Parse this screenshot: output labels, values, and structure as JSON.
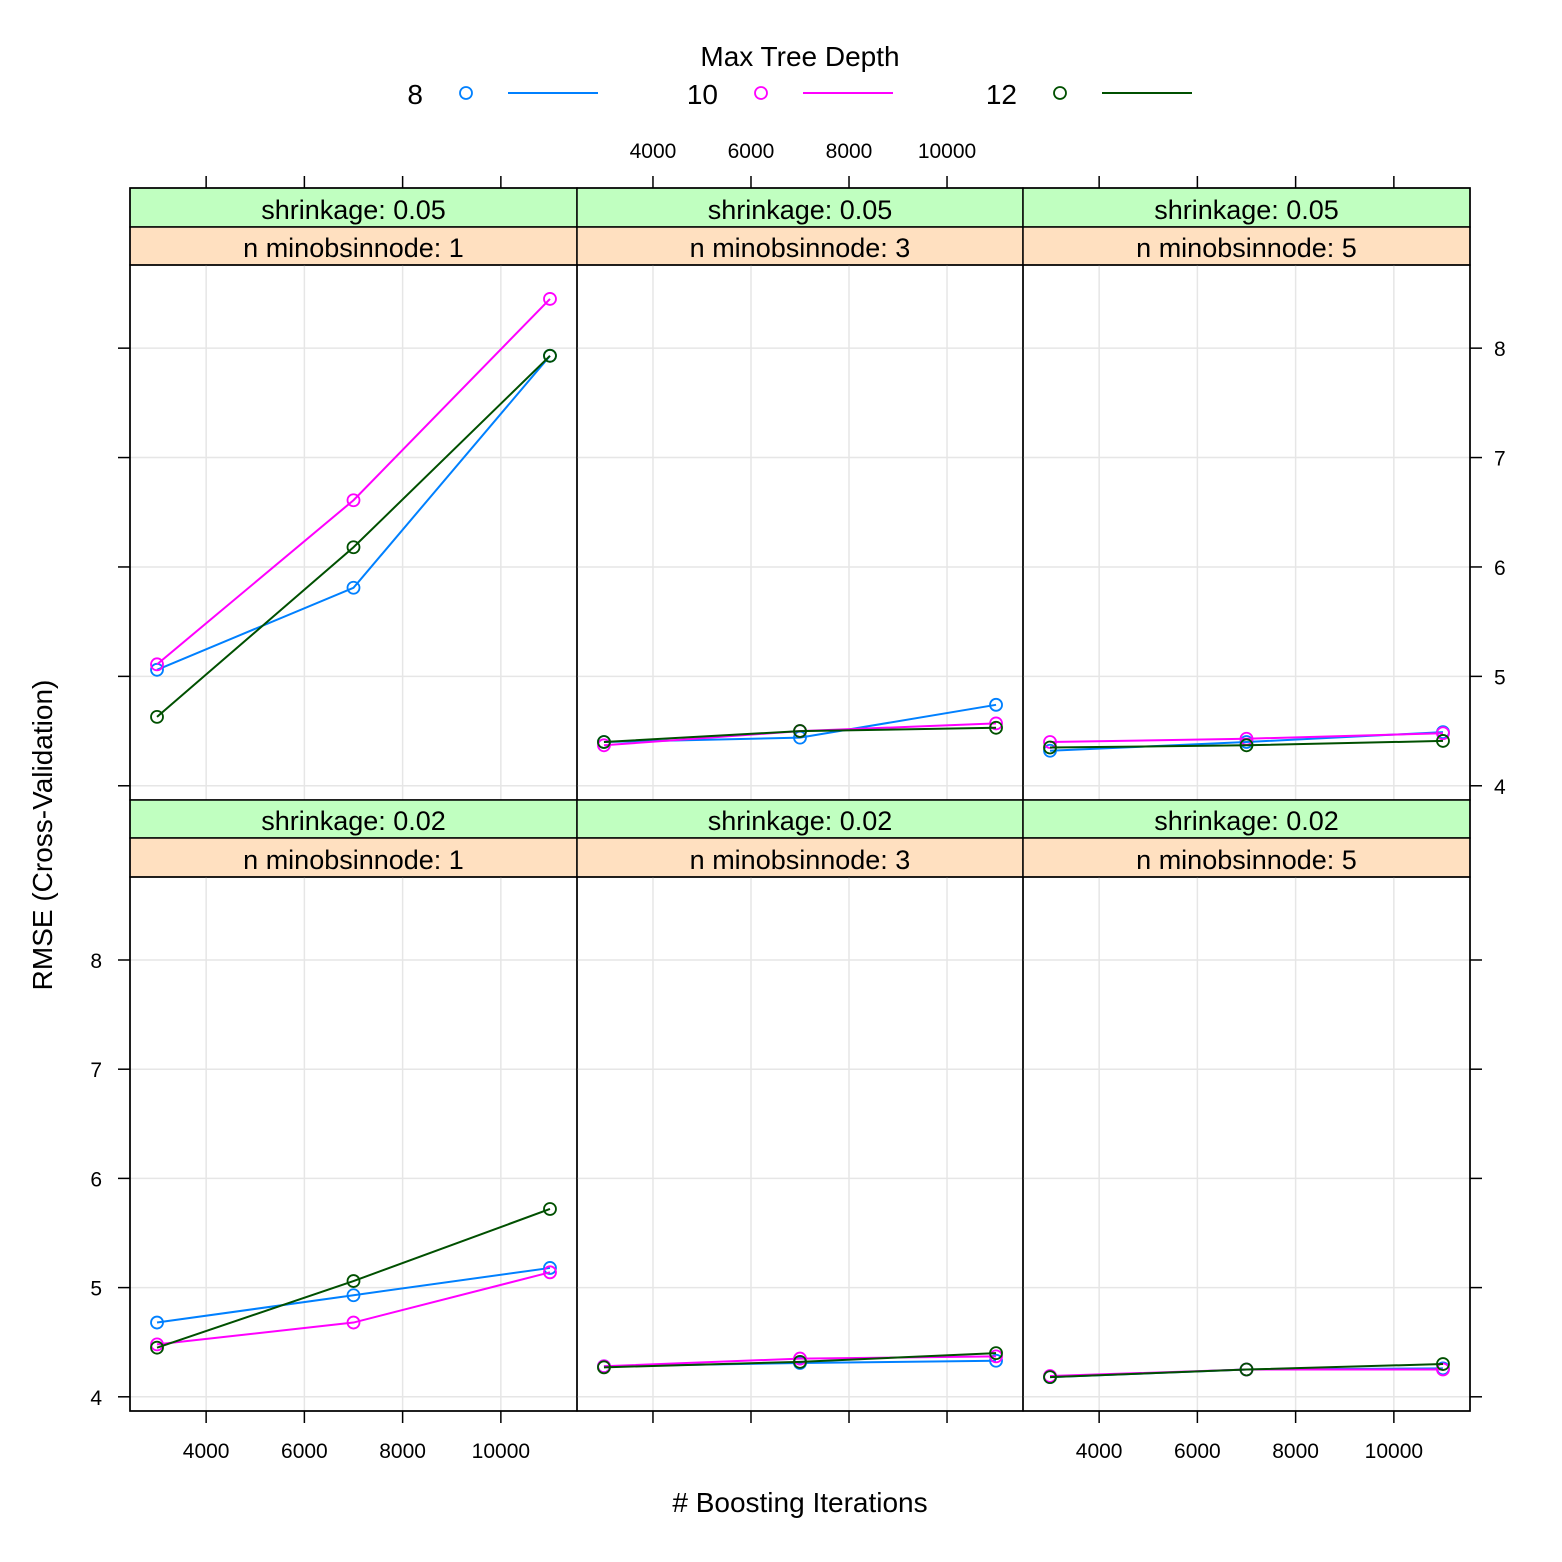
{
  "chart_data": {
    "type": "line",
    "xlabel": "# Boosting Iterations",
    "ylabel": "RMSE (Cross-Validation)",
    "x_ticks": [
      4000,
      6000,
      8000,
      10000
    ],
    "y_ticks": [
      4,
      5,
      6,
      7,
      8
    ],
    "xlim": [
      2450,
      11550
    ],
    "ylim": [
      3.87,
      8.76
    ],
    "grid": true,
    "legend": {
      "title": "Max Tree Depth",
      "position": "top",
      "entries": [
        {
          "label": "8",
          "color": "#0080ff"
        },
        {
          "label": "10",
          "color": "#ff00ff"
        },
        {
          "label": "12",
          "color": "#005000"
        }
      ]
    },
    "panels": [
      {
        "shrinkage": "shrinkage: 0.05",
        "minobs": "n minobsinnode: 1",
        "x": [
          3000,
          7000,
          11000
        ],
        "series": [
          {
            "name": "8",
            "values": [
              5.06,
              5.81,
              7.93
            ]
          },
          {
            "name": "10",
            "values": [
              5.11,
              6.61,
              8.45
            ]
          },
          {
            "name": "12",
            "values": [
              4.63,
              6.18,
              7.93
            ]
          }
        ]
      },
      {
        "shrinkage": "shrinkage: 0.05",
        "minobs": "n minobsinnode: 3",
        "x": [
          3000,
          7000,
          11000
        ],
        "series": [
          {
            "name": "8",
            "values": [
              4.4,
              4.44,
              4.74
            ]
          },
          {
            "name": "10",
            "values": [
              4.37,
              4.5,
              4.57
            ]
          },
          {
            "name": "12",
            "values": [
              4.4,
              4.5,
              4.53
            ]
          }
        ]
      },
      {
        "shrinkage": "shrinkage: 0.05",
        "minobs": "n minobsinnode: 5",
        "x": [
          3000,
          7000,
          11000
        ],
        "series": [
          {
            "name": "8",
            "values": [
              4.32,
              4.4,
              4.49
            ]
          },
          {
            "name": "10",
            "values": [
              4.4,
              4.43,
              4.48
            ]
          },
          {
            "name": "12",
            "values": [
              4.35,
              4.37,
              4.41
            ]
          }
        ]
      },
      {
        "shrinkage": "shrinkage: 0.02",
        "minobs": "n minobsinnode: 1",
        "x": [
          3000,
          7000,
          11000
        ],
        "series": [
          {
            "name": "8",
            "values": [
              4.68,
              4.93,
              5.18
            ]
          },
          {
            "name": "10",
            "values": [
              4.48,
              4.68,
              5.14
            ]
          },
          {
            "name": "12",
            "values": [
              4.45,
              5.06,
              5.72
            ]
          }
        ]
      },
      {
        "shrinkage": "shrinkage: 0.02",
        "minobs": "n minobsinnode: 3",
        "x": [
          3000,
          7000,
          11000
        ],
        "series": [
          {
            "name": "8",
            "values": [
              4.28,
              4.31,
              4.33
            ]
          },
          {
            "name": "10",
            "values": [
              4.28,
              4.35,
              4.37
            ]
          },
          {
            "name": "12",
            "values": [
              4.27,
              4.32,
              4.4
            ]
          }
        ]
      },
      {
        "shrinkage": "shrinkage: 0.02",
        "minobs": "n minobsinnode: 5",
        "x": [
          3000,
          7000,
          11000
        ],
        "series": [
          {
            "name": "8",
            "values": [
              4.18,
              4.25,
              4.26
            ]
          },
          {
            "name": "10",
            "values": [
              4.19,
              4.25,
              4.25
            ]
          },
          {
            "name": "12",
            "values": [
              4.18,
              4.25,
              4.3
            ]
          }
        ]
      }
    ]
  }
}
